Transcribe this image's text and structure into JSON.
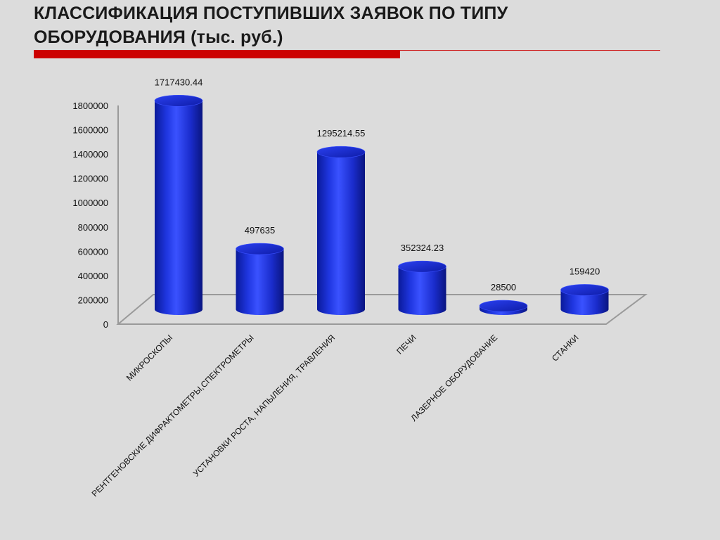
{
  "slide": {
    "title_line1": "КЛАССИФИКАЦИЯ ПОСТУПИВШИХ ЗАЯВОК ПО ТИПУ",
    "title_line2": "ОБОРУДОВАНИЯ (тыс. руб.)",
    "accent_color": "#cc0000",
    "background_color": "#dcdcdc"
  },
  "chart_data": {
    "type": "bar",
    "style": "3d-cylinder",
    "categories": [
      "МИКРОСКОПЫ",
      "РЕНТГЕНОВСКИЕ ДИФРАКТОМЕТРЫ,СПЕКТРОМЕТРЫ",
      "УСТАНОВКИ РОСТА, НАПЫЛЕНИЯ, ТРАВЛЕНИЯ",
      "ПЕЧИ",
      "ЛАЗЕРНОЕ ОБОРУДОВАНИЕ",
      "СТАНКИ"
    ],
    "values": [
      1717430.44,
      497635,
      1295214.55,
      352324.23,
      28500,
      159420
    ],
    "data_labels": [
      "1717430.44",
      "497635",
      "1295214.55",
      "352324.23",
      "28500",
      "159420"
    ],
    "y_ticks": [
      "0",
      "200000",
      "400000",
      "600000",
      "800000",
      "1000000",
      "1200000",
      "1400000",
      "1600000",
      "1800000"
    ],
    "ylim": [
      0,
      1800000
    ],
    "grid": false,
    "legend": false,
    "bar_color": "#1a2fd6"
  }
}
